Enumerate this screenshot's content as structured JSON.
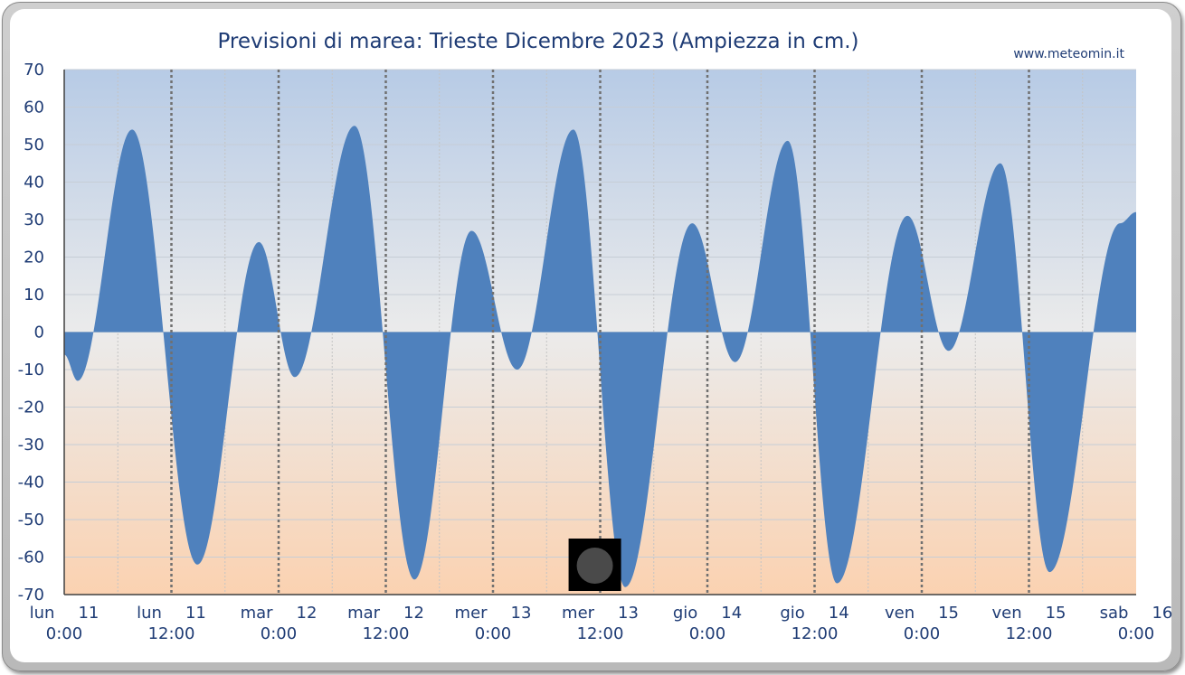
{
  "title": "Previsioni di marea: Trieste Dicembre 2023 (Ampiezza in cm.)",
  "site": "www.meteomin.it",
  "colors": {
    "area": "#4f81bd",
    "bg_top": "#b7cbe6",
    "bg_mid": "#ebebeb",
    "bg_bottom": "#fbd2b1",
    "text": "#1f3c75",
    "moon_box": "#000000",
    "moon_disc": "#4a4a4a"
  },
  "moon_icon": "new-moon-icon",
  "chart_data": {
    "type": "area",
    "title": "Previsioni di marea: Trieste Dicembre 2023 (Ampiezza in cm.)",
    "xlabel": "",
    "ylabel": "",
    "ylim": [
      -70,
      70
    ],
    "yticks": [
      70,
      60,
      50,
      40,
      30,
      20,
      10,
      0,
      -10,
      -20,
      -30,
      -40,
      -50,
      -60,
      -70
    ],
    "xlim_hours": [
      0,
      120
    ],
    "xticks": [
      {
        "hour": 0,
        "day": "lun",
        "date": "11",
        "time": "0:00"
      },
      {
        "hour": 12,
        "day": "lun",
        "date": "11",
        "time": "12:00"
      },
      {
        "hour": 24,
        "day": "mar",
        "date": "12",
        "time": "0:00"
      },
      {
        "hour": 36,
        "day": "mar",
        "date": "12",
        "time": "12:00"
      },
      {
        "hour": 48,
        "day": "mer",
        "date": "13",
        "time": "0:00"
      },
      {
        "hour": 60,
        "day": "mer",
        "date": "13",
        "time": "12:00"
      },
      {
        "hour": 72,
        "day": "gio",
        "date": "14",
        "time": "0:00"
      },
      {
        "hour": 84,
        "day": "gio",
        "date": "14",
        "time": "12:00"
      },
      {
        "hour": 96,
        "day": "ven",
        "date": "15",
        "time": "0:00"
      },
      {
        "hour": 108,
        "day": "ven",
        "date": "15",
        "time": "12:00"
      },
      {
        "hour": 120,
        "day": "sab",
        "date": "16",
        "time": "0:00"
      }
    ],
    "grid": true,
    "series": [
      {
        "x_hours": [
          0,
          1.5,
          7.6,
          14.9,
          21.8,
          25.8,
          32.5,
          39.2,
          45.6,
          50.7,
          57.0,
          62.8,
          70.3,
          75.1,
          81.0,
          86.5,
          94.4,
          99.0,
          104.8,
          110.3,
          118.2,
          120
        ],
        "values": [
          -6,
          -13,
          54,
          -62,
          24,
          -12,
          55,
          -66,
          27,
          -10,
          54,
          -68,
          29,
          -8,
          51,
          -67,
          31,
          -5,
          45,
          -64,
          29,
          32
        ]
      }
    ],
    "moon_phase_hour": 59.4
  }
}
